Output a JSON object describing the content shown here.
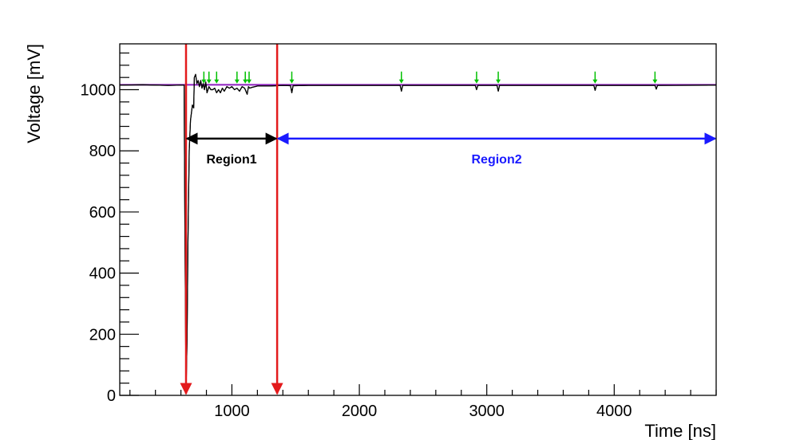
{
  "chart_data": {
    "type": "line",
    "title": "",
    "xlabel": "Time [ns]",
    "ylabel": "Voltage [mV]",
    "xlim": [
      120,
      4800
    ],
    "ylim": [
      0,
      1150
    ],
    "grid": false,
    "x_ticks": [
      {
        "value": 1000,
        "label": "1000"
      },
      {
        "value": 2000,
        "label": "2000"
      },
      {
        "value": 3000,
        "label": "3000"
      },
      {
        "value": 4000,
        "label": "4000"
      }
    ],
    "y_ticks": [
      {
        "value": 0,
        "label": "0"
      },
      {
        "value": 200,
        "label": "200"
      },
      {
        "value": 400,
        "label": "400"
      },
      {
        "value": 600,
        "label": "600"
      },
      {
        "value": 800,
        "label": "800"
      },
      {
        "value": 1000,
        "label": "1000"
      }
    ],
    "series": [
      {
        "color": "#000000",
        "x": [
          120,
          300,
          500,
          600,
          625,
          632,
          640,
          648,
          655,
          665,
          675,
          690,
          700,
          705,
          715,
          725,
          735,
          745,
          755,
          765,
          775,
          785,
          795,
          805,
          820,
          835,
          850,
          865,
          880,
          895,
          910,
          925,
          940,
          960,
          980,
          1000,
          1020,
          1040,
          1060,
          1080,
          1100,
          1110,
          1120,
          1130,
          1140,
          1160,
          1200,
          1300,
          1400,
          1460,
          1470,
          1480,
          1600,
          2000,
          2320,
          2330,
          2340,
          2600,
          2910,
          2920,
          2930,
          3080,
          3090,
          3100,
          3500,
          3840,
          3850,
          3860,
          4300,
          4320,
          4330,
          4340,
          4800
        ],
        "y": [
          1015,
          1016,
          1014,
          1015,
          1015,
          500,
          5,
          180,
          500,
          800,
          900,
          950,
          940,
          1040,
          1050,
          1020,
          1030,
          1010,
          1030,
          1005,
          1020,
          1000,
          1025,
          990,
          1010,
          1000,
          1000,
          1005,
          990,
          1000,
          990,
          1005,
          995,
          1010,
          1005,
          1010,
          1000,
          1005,
          995,
          1010,
          1005,
          995,
          985,
          1010,
          1005,
          1008,
          1012,
          1012,
          1014,
          1013,
          990,
          1013,
          1014,
          1014,
          1014,
          995,
          1014,
          1014,
          1014,
          1000,
          1014,
          1014,
          995,
          1014,
          1014,
          1014,
          998,
          1014,
          1014,
          1014,
          1002,
          1014,
          1015
        ]
      },
      {
        "color": "#8e1fbf",
        "x": [
          120,
          4800
        ],
        "y": [
          1016,
          1016
        ]
      }
    ],
    "markers": [
      {
        "x": 780,
        "y": 1015,
        "color": "#00c000"
      },
      {
        "x": 820,
        "y": 1015,
        "color": "#00c000"
      },
      {
        "x": 880,
        "y": 1015,
        "color": "#00c000"
      },
      {
        "x": 1040,
        "y": 1015,
        "color": "#00c000"
      },
      {
        "x": 1105,
        "y": 1015,
        "color": "#00c000"
      },
      {
        "x": 1135,
        "y": 1015,
        "color": "#00c000"
      },
      {
        "x": 1470,
        "y": 1015,
        "color": "#00c000"
      },
      {
        "x": 2330,
        "y": 1015,
        "color": "#00c000"
      },
      {
        "x": 2920,
        "y": 1015,
        "color": "#00c000"
      },
      {
        "x": 3090,
        "y": 1015,
        "color": "#00c000"
      },
      {
        "x": 3850,
        "y": 1015,
        "color": "#00c000"
      },
      {
        "x": 4320,
        "y": 1015,
        "color": "#00c000"
      }
    ],
    "vlines": [
      {
        "x": 640,
        "color": "#e31a1c"
      },
      {
        "x": 1355,
        "color": "#e31a1c"
      }
    ],
    "regions": [
      {
        "label": "Region1",
        "x_start": 640,
        "x_end": 1355,
        "y": 840,
        "color": "#000000"
      },
      {
        "label": "Region2",
        "x_start": 1355,
        "x_end": 4800,
        "y": 840,
        "color": "#1a1aff"
      }
    ]
  }
}
